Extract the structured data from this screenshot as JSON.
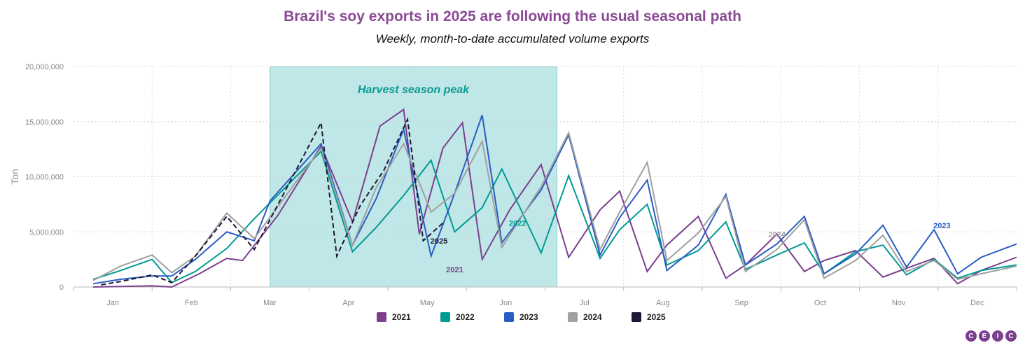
{
  "header": {
    "title": "Brazil's soy exports in 2025 are following the usual seasonal path",
    "subtitle": "Weekly, month-to-date accumulated volume exports"
  },
  "logo": {
    "letters": [
      "C",
      "E",
      "I",
      "C"
    ],
    "color": "#7a3f8e"
  },
  "chart_data": {
    "type": "line",
    "ylabel": "Ton",
    "ylim": [
      0,
      20000000
    ],
    "yticks": [
      0,
      5000000,
      10000000,
      15000000,
      20000000
    ],
    "ytick_labels": [
      "0",
      "5,000,000",
      "10,000,000",
      "15,000,000",
      "20,000,000"
    ],
    "xlim": [
      0,
      12
    ],
    "months": [
      "Jan",
      "Feb",
      "Mar",
      "Apr",
      "May",
      "Jun",
      "Jul",
      "Aug",
      "Sep",
      "Oct",
      "Nov",
      "Dec"
    ],
    "grid": true,
    "legend_position": "bottom",
    "highlight": {
      "x_start": 2.5,
      "x_end": 6.15,
      "label": "Harvest season peak",
      "color": "#00a0a0"
    },
    "series": [
      {
        "name": "2021",
        "color": "#7b3f8e",
        "dash": false,
        "x": [
          0.25,
          1.0,
          1.25,
          1.6,
          1.95,
          2.15,
          2.6,
          3.15,
          3.55,
          3.9,
          4.2,
          4.4,
          4.7,
          4.95,
          5.2,
          5.55,
          5.95,
          6.3,
          6.7,
          6.95,
          7.3,
          7.55,
          7.95,
          8.3,
          8.55,
          8.95,
          9.3,
          9.55,
          9.95,
          10.3,
          10.6,
          10.95,
          11.25,
          11.55,
          12.0
        ],
        "y": [
          0,
          100000,
          0,
          1200000,
          2600000,
          2400000,
          6500000,
          12800000,
          5900000,
          14600000,
          16100000,
          4800000,
          12600000,
          14900000,
          2500000,
          7000000,
          11100000,
          2700000,
          7000000,
          8700000,
          1400000,
          3800000,
          6400000,
          800000,
          2000000,
          4800000,
          1400000,
          2400000,
          3300000,
          900000,
          1700000,
          2600000,
          300000,
          1500000,
          2700000
        ]
      },
      {
        "name": "2022",
        "color": "#009b94",
        "dash": false,
        "x": [
          0.25,
          0.6,
          1.0,
          1.25,
          1.55,
          1.95,
          2.3,
          3.15,
          3.55,
          3.85,
          4.2,
          4.55,
          4.85,
          5.2,
          5.45,
          5.95,
          6.3,
          6.7,
          6.95,
          7.3,
          7.55,
          7.95,
          8.3,
          8.55,
          8.95,
          9.3,
          9.55,
          9.95,
          10.3,
          10.6,
          10.95,
          11.25,
          11.55,
          12.0
        ],
        "y": [
          700000,
          1500000,
          2500000,
          400000,
          1400000,
          3500000,
          6200000,
          12300000,
          3200000,
          5400000,
          8300000,
          11500000,
          5000000,
          7200000,
          10700000,
          3100000,
          10100000,
          2600000,
          5200000,
          7500000,
          2000000,
          3300000,
          5900000,
          1600000,
          2900000,
          4000000,
          1200000,
          3200000,
          3800000,
          1100000,
          2500000,
          800000,
          1500000,
          2000000
        ]
      },
      {
        "name": "2023",
        "color": "#2a5cc3",
        "dash": false,
        "x": [
          0.25,
          0.6,
          1.0,
          1.25,
          1.55,
          1.95,
          2.3,
          2.5,
          3.15,
          3.55,
          3.85,
          4.2,
          4.55,
          4.85,
          5.2,
          5.45,
          5.95,
          6.3,
          6.7,
          6.95,
          7.3,
          7.55,
          7.95,
          8.3,
          8.55,
          8.95,
          9.3,
          9.55,
          9.95,
          10.3,
          10.6,
          10.95,
          11.25,
          11.55,
          12.0
        ],
        "y": [
          300000,
          700000,
          1000000,
          1000000,
          2500000,
          5000000,
          4200000,
          7800000,
          13000000,
          3800000,
          8000000,
          14300000,
          2800000,
          8500000,
          15600000,
          4000000,
          8800000,
          13800000,
          2900000,
          6300000,
          9700000,
          1500000,
          3800000,
          8400000,
          2000000,
          3900000,
          6400000,
          1200000,
          3000000,
          5600000,
          1800000,
          5200000,
          1200000,
          2700000,
          3900000
        ]
      },
      {
        "name": "2024",
        "color": "#a0a0a0",
        "dash": false,
        "x": [
          0.25,
          0.6,
          1.0,
          1.25,
          1.55,
          1.95,
          2.3,
          3.15,
          3.55,
          3.85,
          4.2,
          4.55,
          4.85,
          5.2,
          5.45,
          5.95,
          6.3,
          6.7,
          6.95,
          7.3,
          7.55,
          7.95,
          8.3,
          8.55,
          8.95,
          9.3,
          9.55,
          9.95,
          10.3,
          10.6,
          10.95,
          11.25,
          11.55,
          12.0
        ],
        "y": [
          600000,
          1900000,
          2900000,
          1300000,
          2800000,
          6700000,
          4400000,
          12600000,
          3800000,
          9000000,
          13000000,
          6800000,
          8500000,
          13200000,
          3600000,
          9100000,
          14000000,
          3400000,
          6800000,
          11300000,
          2400000,
          4900000,
          8200000,
          1400000,
          3400000,
          6100000,
          800000,
          2400000,
          4700000,
          1400000,
          2400000,
          700000,
          1200000,
          1900000
        ]
      },
      {
        "name": "2025",
        "color": "#1f1733",
        "dash": true,
        "x": [
          0.35,
          0.6,
          1.0,
          1.25,
          1.55,
          1.95,
          2.3,
          3.15,
          3.35,
          3.65,
          3.95,
          4.25,
          4.45,
          4.7
        ],
        "y": [
          200000,
          500000,
          1100000,
          400000,
          2800000,
          6400000,
          3400000,
          14900000,
          2800000,
          7400000,
          10600000,
          15200000,
          4200000,
          5800000
        ]
      }
    ],
    "annotations": [
      {
        "text": "2025",
        "x": 4.65,
        "y": 4200000,
        "color": "#1f1733"
      },
      {
        "text": "2022",
        "x": 5.65,
        "y": 5800000,
        "color": "#009b94"
      },
      {
        "text": "2021",
        "x": 4.85,
        "y": 1600000,
        "color": "#7b3f8e"
      },
      {
        "text": "2024",
        "x": 8.95,
        "y": 4800000,
        "color": "#a0a0a0"
      },
      {
        "text": "2023",
        "x": 11.05,
        "y": 5600000,
        "color": "#2a5cc3"
      }
    ]
  }
}
